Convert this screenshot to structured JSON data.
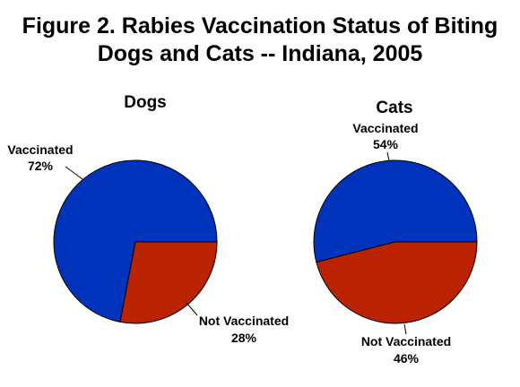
{
  "title_lines": [
    "Figure 2. Rabies Vaccination Status of Biting",
    "Dogs and Cats -- Indiana, 2005"
  ],
  "colors": {
    "vaccinated": "#0033BB",
    "not_vaccinated": "#BB2200",
    "outline": "#000000"
  },
  "chart_data": [
    {
      "type": "pie",
      "title": "Dogs",
      "slices": [
        {
          "label": "Vaccinated",
          "value_label": "72%",
          "value": 72
        },
        {
          "label": "Not Vaccinated",
          "value_label": "28%",
          "value": 28
        }
      ]
    },
    {
      "type": "pie",
      "title": "Cats",
      "slices": [
        {
          "label": "Vaccinated",
          "value_label": "54%",
          "value": 54
        },
        {
          "label": "Not Vaccinated",
          "value_label": "46%",
          "value": 46
        }
      ]
    }
  ]
}
